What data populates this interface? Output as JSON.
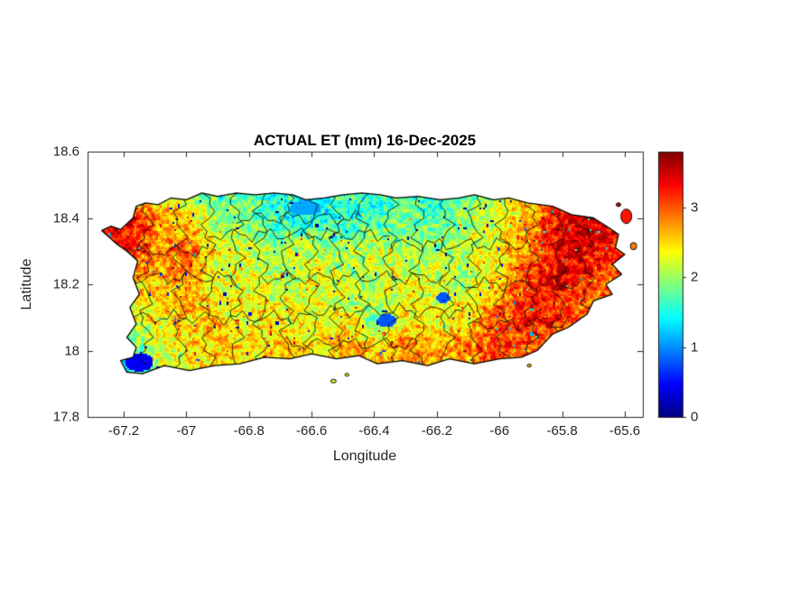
{
  "chart_data": {
    "type": "heatmap",
    "title": "ACTUAL ET (mm) 16-Dec-2025",
    "xlabel": "Longitude",
    "ylabel": "Latitude",
    "xlim": [
      -67.3153,
      -65.5423
    ],
    "ylim": [
      17.8,
      18.6
    ],
    "xticks": [
      -67.2,
      -67,
      -66.8,
      -66.6,
      -66.4,
      -66.2,
      -66,
      -65.8,
      -65.6
    ],
    "xtick_labels": [
      "-67.2",
      "-67",
      "-66.8",
      "-66.6",
      "-66.4",
      "-66.2",
      "-66",
      "-65.8",
      "-65.6"
    ],
    "yticks": [
      17.8,
      18,
      18.2,
      18.4,
      18.6
    ],
    "ytick_labels": [
      "17.8",
      "18",
      "18.2",
      "18.4",
      "18.6"
    ],
    "colormap": "jet",
    "clim": [
      0,
      3.8
    ],
    "colorbar": {
      "ticks": [
        0,
        1,
        2,
        3
      ],
      "labels": [
        "0",
        "1",
        "2",
        "3"
      ],
      "min": 0,
      "max": 3.8
    },
    "grid": {
      "comment": "Actual ET (mm) sampled on a 0.1 deg grid; rows from lat 18.5 down to 17.9, cols from lon -67.2 to -65.6",
      "lon_start": -67.2,
      "lon_step": 0.1,
      "lat_start": 18.5,
      "lat_step": -0.1,
      "values": [
        [
          2.4,
          2.1,
          1.9,
          1.6,
          1.8,
          1.5,
          1.4,
          1.6,
          1.5,
          1.8,
          1.6,
          1.8,
          2.0,
          2.4,
          3.0,
          3.3,
          3.2
        ],
        [
          3.4,
          3.0,
          2.5,
          2.0,
          1.8,
          1.6,
          1.5,
          1.7,
          1.6,
          1.9,
          1.7,
          2.0,
          2.2,
          2.8,
          3.4,
          3.5,
          3.3
        ],
        [
          3.3,
          2.8,
          3.0,
          2.4,
          2.2,
          2.0,
          2.2,
          2.0,
          2.2,
          2.1,
          2.0,
          2.2,
          2.4,
          3.0,
          3.5,
          3.4,
          3.2
        ],
        [
          2.4,
          2.6,
          2.8,
          2.3,
          2.4,
          2.2,
          2.3,
          2.2,
          2.1,
          2.3,
          2.2,
          2.1,
          2.6,
          3.2,
          3.4,
          3.0,
          2.8
        ],
        [
          2.2,
          2.4,
          2.6,
          2.5,
          2.3,
          2.4,
          2.2,
          2.4,
          1.8,
          2.4,
          2.3,
          2.5,
          3.0,
          3.3,
          3.1,
          2.8,
          2.6
        ],
        [
          1.6,
          2.2,
          2.4,
          2.6,
          2.5,
          2.6,
          2.4,
          2.8,
          2.6,
          2.8,
          2.7,
          2.9,
          3.1,
          2.9,
          2.6,
          2.4,
          2.2
        ],
        [
          1.0,
          2.0,
          2.2,
          2.4,
          2.3,
          2.4,
          2.2,
          2.5,
          2.4,
          2.6,
          2.5,
          2.6,
          2.8,
          2.6,
          2.4,
          2.2,
          2.0
        ]
      ]
    },
    "cold_spots": [
      [
        -67.15,
        17.965,
        0.045,
        0.028,
        0.45
      ],
      [
        -66.36,
        18.09,
        0.03,
        0.02,
        0.8
      ],
      [
        -66.18,
        18.16,
        0.022,
        0.016,
        0.8
      ],
      [
        -66.62,
        18.43,
        0.05,
        0.022,
        1.1
      ]
    ],
    "island_outline": [
      [
        -67.27,
        18.362
      ],
      [
        -67.24,
        18.375
      ],
      [
        -67.21,
        18.365
      ],
      [
        -67.17,
        18.4
      ],
      [
        -67.16,
        18.435
      ],
      [
        -67.13,
        18.445
      ],
      [
        -67.09,
        18.44
      ],
      [
        -67.05,
        18.46
      ],
      [
        -67.0,
        18.455
      ],
      [
        -66.95,
        18.475
      ],
      [
        -66.9,
        18.465
      ],
      [
        -66.84,
        18.475
      ],
      [
        -66.78,
        18.47
      ],
      [
        -66.72,
        18.475
      ],
      [
        -66.66,
        18.47
      ],
      [
        -66.62,
        18.455
      ],
      [
        -66.56,
        18.46
      ],
      [
        -66.5,
        18.47
      ],
      [
        -66.44,
        18.475
      ],
      [
        -66.38,
        18.47
      ],
      [
        -66.33,
        18.46
      ],
      [
        -66.26,
        18.465
      ],
      [
        -66.19,
        18.455
      ],
      [
        -66.13,
        18.46
      ],
      [
        -66.08,
        18.47
      ],
      [
        -66.02,
        18.455
      ],
      [
        -65.97,
        18.46
      ],
      [
        -65.91,
        18.445
      ],
      [
        -65.83,
        18.435
      ],
      [
        -65.77,
        18.41
      ],
      [
        -65.7,
        18.4
      ],
      [
        -65.65,
        18.37
      ],
      [
        -65.62,
        18.35
      ],
      [
        -65.63,
        18.31
      ],
      [
        -65.6,
        18.29
      ],
      [
        -65.64,
        18.26
      ],
      [
        -65.61,
        18.23
      ],
      [
        -65.66,
        18.2
      ],
      [
        -65.64,
        18.17
      ],
      [
        -65.7,
        18.15
      ],
      [
        -65.72,
        18.11
      ],
      [
        -65.78,
        18.07
      ],
      [
        -65.83,
        18.05
      ],
      [
        -65.88,
        18.0
      ],
      [
        -65.93,
        17.98
      ],
      [
        -66.0,
        17.975
      ],
      [
        -66.08,
        17.96
      ],
      [
        -66.16,
        17.975
      ],
      [
        -66.23,
        17.955
      ],
      [
        -66.31,
        17.97
      ],
      [
        -66.39,
        17.96
      ],
      [
        -66.45,
        17.985
      ],
      [
        -66.52,
        17.975
      ],
      [
        -66.6,
        17.99
      ],
      [
        -66.67,
        17.975
      ],
      [
        -66.75,
        17.98
      ],
      [
        -66.83,
        17.96
      ],
      [
        -66.91,
        17.955
      ],
      [
        -66.99,
        17.94
      ],
      [
        -67.07,
        17.955
      ],
      [
        -67.14,
        17.93
      ],
      [
        -67.19,
        17.935
      ],
      [
        -67.21,
        17.97
      ],
      [
        -67.17,
        17.98
      ],
      [
        -67.16,
        18.01
      ],
      [
        -67.19,
        18.04
      ],
      [
        -67.16,
        18.08
      ],
      [
        -67.18,
        18.13
      ],
      [
        -67.15,
        18.17
      ],
      [
        -67.17,
        18.22
      ],
      [
        -67.155,
        18.27
      ],
      [
        -67.19,
        18.3
      ],
      [
        -67.22,
        18.32
      ],
      [
        -67.27,
        18.362
      ]
    ],
    "islets": [
      [
        -66.53,
        17.908,
        3,
        2
      ],
      [
        -66.487,
        17.927,
        2.2,
        1.6
      ],
      [
        -65.905,
        17.955,
        2.2,
        1.6
      ],
      [
        -65.595,
        18.405,
        6,
        8
      ],
      [
        -65.572,
        18.315,
        3.5,
        4
      ],
      [
        -65.62,
        18.44,
        2.5,
        2
      ]
    ],
    "boundaries": {
      "vertical_lons": [
        -67.13,
        -67.02,
        -66.93,
        -66.84,
        -66.76,
        -66.68,
        -66.6,
        -66.52,
        -66.44,
        -66.35,
        -66.26,
        -66.17,
        -66.08,
        -65.99,
        -65.9,
        -65.81,
        -65.72
      ],
      "horizontal_segments": [
        [
          18.3,
          -67.25,
          -66.93
        ],
        [
          18.22,
          -67.22,
          -66.84
        ],
        [
          18.1,
          -67.2,
          -66.6
        ],
        [
          18.35,
          -66.93,
          -66.35
        ],
        [
          18.22,
          -66.76,
          -66.17
        ],
        [
          18.12,
          -66.6,
          -66.08
        ],
        [
          18.32,
          -66.35,
          -65.9
        ],
        [
          18.2,
          -66.17,
          -65.7
        ],
        [
          18.08,
          -66.08,
          -65.78
        ],
        [
          18.02,
          -66.68,
          -66.26
        ],
        [
          18.4,
          -66.84,
          -66.44
        ]
      ]
    }
  }
}
